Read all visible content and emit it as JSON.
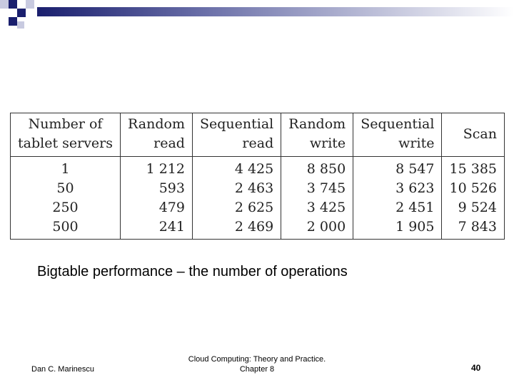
{
  "table": {
    "header": [
      [
        "Number of",
        "tablet servers"
      ],
      [
        "Random",
        "read"
      ],
      [
        "Sequential",
        "read"
      ],
      [
        "Random",
        "write"
      ],
      [
        "Sequential",
        "write"
      ],
      [
        "Scan"
      ]
    ],
    "rows": [
      [
        "1",
        "1 212",
        "4 425",
        "8 850",
        "8 547",
        "15 385"
      ],
      [
        "50",
        "593",
        "2 463",
        "3 745",
        "3 623",
        "10 526"
      ],
      [
        "250",
        "479",
        "2 625",
        "3 425",
        "2 451",
        "9 524"
      ],
      [
        "500",
        "241",
        "2 469",
        "2 000",
        "1 905",
        "7 843"
      ]
    ]
  },
  "caption": "Bigtable performance – the number of operations",
  "footer": {
    "author": "Dan C. Marinescu",
    "source": [
      "Cloud Computing: Theory and Practice.",
      "Chapter 8"
    ],
    "page": "40"
  }
}
